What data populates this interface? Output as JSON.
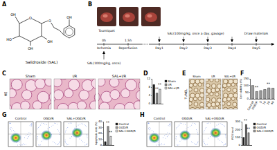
{
  "figure": {
    "A": {
      "label": "A",
      "caption": "Salidroside (SAL)",
      "atoms": [
        "O",
        "OH",
        "O",
        "HO",
        "OH",
        "OH",
        "OH"
      ]
    },
    "B": {
      "label": "B",
      "photo_label": "Tourniquet",
      "times": [
        "0h",
        "1.5h"
      ],
      "phases": [
        "Ischemia",
        "Reperfusion"
      ],
      "first_dose": "SAL(100mg/kg, once)",
      "daily_dose": "SAL(100mg/kg, once a day, gavage)",
      "days": [
        "Day1",
        "Day2",
        "Day3",
        "Day4",
        "Day5"
      ],
      "end": "Draw materials"
    },
    "C": {
      "label": "C",
      "stain": "HE",
      "groups": [
        "Sham",
        "I/R",
        "SAL+I/R"
      ]
    },
    "E": {
      "label": "E",
      "stain": "TUNEL",
      "groups": [
        "Sham",
        "I/R",
        "SAL+I/R"
      ]
    },
    "G": {
      "label": "G",
      "groups": [
        "Control",
        "OGD/R",
        "SAL+OGD/R"
      ]
    },
    "H": {
      "label": "H",
      "groups": [
        "Control",
        "OGD/R",
        "SAL+OGD/R"
      ]
    }
  },
  "chart_data": [
    {
      "type": "bar",
      "title": "D",
      "categories": [
        "Sham",
        "I/R",
        "SAL+I/R"
      ],
      "values": [
        9.2,
        5.1,
        7.0
      ],
      "colors": [
        "#222222",
        "#8a8a8a",
        "#d0d0d0"
      ],
      "ylim": [
        0,
        12
      ],
      "yticks": [
        0,
        4,
        8,
        12
      ],
      "legend": "right",
      "tick_labels": "y",
      "grid": false,
      "annotations": [
        {
          "text": "**",
          "x": 1,
          "y": 5.6
        },
        {
          "text": "**",
          "x": 2,
          "y": 7.5
        }
      ]
    },
    {
      "type": "bar",
      "title": "F",
      "y_label": "Cell viability (%)",
      "categories": [
        "Control",
        "OGD/R",
        "5",
        "10",
        "20",
        "40"
      ],
      "values": [
        100,
        55,
        62,
        70,
        82,
        80
      ],
      "color": "#9e9e9e",
      "ylim": [
        0,
        150
      ],
      "yticks": [
        0,
        50,
        100,
        150
      ],
      "grid": false,
      "annotations": [
        {
          "text": "**",
          "x": 1,
          "y": 60
        },
        {
          "text": "**",
          "x": 4,
          "y": 87
        }
      ]
    },
    {
      "type": "bar",
      "y_label": "Apoptosis rate (%)",
      "categories": [
        "Control",
        "OGD/R",
        "SAL+OGD/R"
      ],
      "values": [
        6,
        32,
        15
      ],
      "colors": [
        "#222222",
        "#9a9a9a",
        "#e0e0e0"
      ],
      "ylim": [
        0,
        40
      ],
      "yticks": [
        0,
        10,
        20,
        30,
        40
      ],
      "legend": "right",
      "tick_labels": "y",
      "grid": false,
      "annotations": [
        {
          "text": "**",
          "x": 1,
          "y": 33
        },
        {
          "text": "**",
          "x": 2,
          "y": 16
        }
      ]
    },
    {
      "type": "bar",
      "y_label": "ROS level",
      "categories": [
        "Control",
        "OGD/R",
        "SAL+OGD/R"
      ],
      "values": [
        100,
        265,
        160
      ],
      "colors": [
        "#222222",
        "#555555",
        "#999999"
      ],
      "ylim": [
        0,
        300
      ],
      "yticks": [
        0,
        100,
        200,
        300
      ],
      "legend": "right",
      "tick_labels": "y",
      "grid": false,
      "annotations": [
        {
          "text": "**",
          "x": 1,
          "y": 270
        },
        {
          "text": "**",
          "x": 2,
          "y": 165
        }
      ]
    }
  ]
}
